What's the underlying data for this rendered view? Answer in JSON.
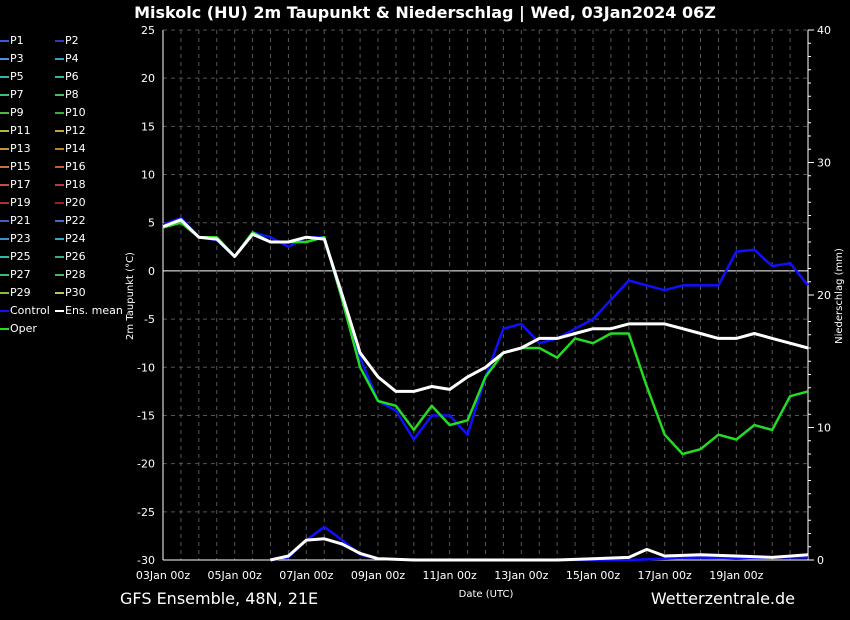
{
  "title": "Miskolc  (HU)  2m Taupunkt & Niederschlag | Wed, 03Jan2024 06Z",
  "footer": {
    "left": "GFS Ensemble, 48N, 21E",
    "right": "Wetterzentrale.de"
  },
  "legend": [
    {
      "label": "P1",
      "color": "#3b5bdb"
    },
    {
      "label": "P2",
      "color": "#2a3fb5"
    },
    {
      "label": "P3",
      "color": "#4a90d9"
    },
    {
      "label": "P4",
      "color": "#3aa0c0"
    },
    {
      "label": "P5",
      "color": "#35b5b0"
    },
    {
      "label": "P6",
      "color": "#2fb89a"
    },
    {
      "label": "P7",
      "color": "#3cc07a"
    },
    {
      "label": "P8",
      "color": "#44c060"
    },
    {
      "label": "P9",
      "color": "#4fb845"
    },
    {
      "label": "P10",
      "color": "#38b030"
    },
    {
      "label": "P11",
      "color": "#b8b840"
    },
    {
      "label": "P12",
      "color": "#c8a040"
    },
    {
      "label": "P13",
      "color": "#c89040"
    },
    {
      "label": "P14",
      "color": "#c08030"
    },
    {
      "label": "P15",
      "color": "#c87040"
    },
    {
      "label": "P16",
      "color": "#c06030"
    },
    {
      "label": "P17",
      "color": "#c05040"
    },
    {
      "label": "P18",
      "color": "#b04040"
    },
    {
      "label": "P19",
      "color": "#b03030"
    },
    {
      "label": "P20",
      "color": "#a02020"
    },
    {
      "label": "P21",
      "color": "#4060c0"
    },
    {
      "label": "P22",
      "color": "#3a70c8"
    },
    {
      "label": "P23",
      "color": "#3a90c8"
    },
    {
      "label": "P24",
      "color": "#30a8c0"
    },
    {
      "label": "P25",
      "color": "#30b8a8"
    },
    {
      "label": "P26",
      "color": "#30b090"
    },
    {
      "label": "P27",
      "color": "#40b870"
    },
    {
      "label": "P28",
      "color": "#50b850"
    },
    {
      "label": "P29",
      "color": "#80c040"
    },
    {
      "label": "P30",
      "color": "#c0c060"
    },
    {
      "label": "Control",
      "color": "#1010ff"
    },
    {
      "label": "Ens. mean",
      "color": "#ffffff"
    },
    {
      "label": "Oper",
      "color": "#22dd22"
    }
  ],
  "chart_data": {
    "type": "line",
    "ylabel_left": "2m Taupunkt (°C)",
    "ylabel_right": "Niederschlag (mm)",
    "xlabel": "Date (UTC)",
    "ylim_left": [
      -30,
      25
    ],
    "ylim_right": [
      0,
      40
    ],
    "yticks_left": [
      "25",
      "20",
      "15",
      "10",
      "5",
      "0",
      "-5",
      "-10",
      "-15",
      "-20",
      "-25",
      "-30"
    ],
    "yticks_right": [
      "40",
      "30",
      "20",
      "10",
      "0"
    ],
    "xlim_days": [
      0,
      16
    ],
    "xticks": [
      "03Jan 00z",
      "05Jan 00z",
      "07Jan 00z",
      "09Jan 00z",
      "11Jan 00z",
      "13Jan 00z",
      "15Jan 00z",
      "17Jan 00z",
      "19Jan 00z"
    ],
    "grid": true,
    "series": [
      {
        "name": "Control",
        "color": "#1010ff",
        "x": [
          1.0,
          1.5,
          2.0,
          2.5,
          3.0,
          3.5,
          4.0,
          4.5,
          5.0,
          5.5,
          6.0,
          6.5,
          7.0,
          7.5,
          8.0,
          8.5,
          9.0,
          9.5,
          10.0,
          10.5,
          11.0,
          11.5,
          12.0,
          12.5,
          13.0,
          13.5,
          14.0,
          14.5,
          15.0,
          15.5,
          16.0,
          16.5,
          17.0,
          17.5,
          18.0,
          18.5,
          19.0
        ],
        "values": [
          4.8,
          5.5,
          3.5,
          3.2,
          1.5,
          4,
          3.5,
          2.5,
          3.5,
          3.5,
          -3,
          -9,
          -13.5,
          -14.5,
          -17.5,
          -15,
          -15,
          -17,
          -11,
          -6,
          -5.5,
          -7.5,
          -7,
          -6,
          -5,
          -3,
          -1,
          -1.5,
          -2,
          -1.5,
          -1.5,
          -1.5,
          2,
          2.2,
          0.5,
          0.8,
          -1.5
        ]
      },
      {
        "name": "Oper",
        "color": "#22dd22",
        "x": [
          1.0,
          1.5,
          2.0,
          2.5,
          3.0,
          3.5,
          4.0,
          4.5,
          5.0,
          5.5,
          6.0,
          6.5,
          7.0,
          7.5,
          8.0,
          8.5,
          9.0,
          9.5,
          10.0,
          10.5,
          11.0,
          11.5,
          12.0,
          12.5,
          13.0,
          13.5,
          14.0,
          14.5,
          15.0,
          15.5,
          16.0,
          16.5,
          17.0,
          17.5,
          18.0,
          18.5,
          19.0
        ],
        "values": [
          4.5,
          5,
          3.5,
          3.5,
          1.5,
          4,
          3,
          3,
          3,
          3.5,
          -3,
          -10,
          -13.5,
          -14,
          -16.5,
          -14,
          -16,
          -15.5,
          -11,
          -8.5,
          -8,
          -8,
          -9,
          -7,
          -7.5,
          -6.5,
          -6.5,
          -12,
          -17,
          -19,
          -18.5,
          -17,
          -17.5,
          -16,
          -16.5,
          -13,
          -12.5
        ]
      },
      {
        "name": "Ens. mean",
        "color": "#ffffff",
        "x": [
          1.0,
          1.5,
          2.0,
          2.5,
          3.0,
          3.5,
          4.0,
          4.5,
          5.0,
          5.5,
          6.0,
          6.5,
          7.0,
          7.5,
          8.0,
          8.5,
          9.0,
          9.5,
          10.0,
          10.5,
          11.0,
          11.5,
          12.0,
          12.5,
          13.0,
          13.5,
          14.0,
          14.5,
          15.0,
          15.5,
          16.0,
          16.5,
          17.0,
          17.5,
          18.0,
          18.5,
          19.0
        ],
        "values": [
          4.6,
          5.3,
          3.5,
          3.3,
          1.5,
          3.8,
          3,
          3,
          3.5,
          3.3,
          -2.5,
          -8.5,
          -11,
          -12.5,
          -12.5,
          -12,
          -12.3,
          -11,
          -10,
          -8.5,
          -8,
          -7,
          -7,
          -6.5,
          -6,
          -6,
          -5.5,
          -5.5,
          -5.5,
          -6,
          -6.5,
          -7,
          -7,
          -6.5,
          -7,
          -7.5,
          -8
        ]
      },
      {
        "name": "Control precip",
        "color": "#1010ff",
        "x": [
          4.0,
          4.5,
          5.0,
          5.5,
          6.0,
          6.5,
          7.0,
          8.0,
          10.0,
          12.0,
          14.0,
          15.0,
          16.0,
          17.0,
          18.0,
          19.0
        ],
        "values": [
          0,
          0.2,
          1.5,
          2.5,
          1.5,
          0.4,
          0.1,
          0,
          0,
          0,
          0,
          0.1,
          0.2,
          0.1,
          0.2,
          0.2
        ]
      },
      {
        "name": "Mean precip",
        "color": "#ffffff",
        "x": [
          4.0,
          4.5,
          5.0,
          5.5,
          6.0,
          6.5,
          7.0,
          8.0,
          10.0,
          12.0,
          13.0,
          14.0,
          14.5,
          15.0,
          16.0,
          17.0,
          18.0,
          19.0
        ],
        "values": [
          0,
          0.3,
          1.5,
          1.6,
          1.2,
          0.5,
          0.1,
          0,
          0,
          0,
          0.1,
          0.2,
          0.8,
          0.3,
          0.4,
          0.3,
          0.2,
          0.4
        ]
      }
    ]
  }
}
